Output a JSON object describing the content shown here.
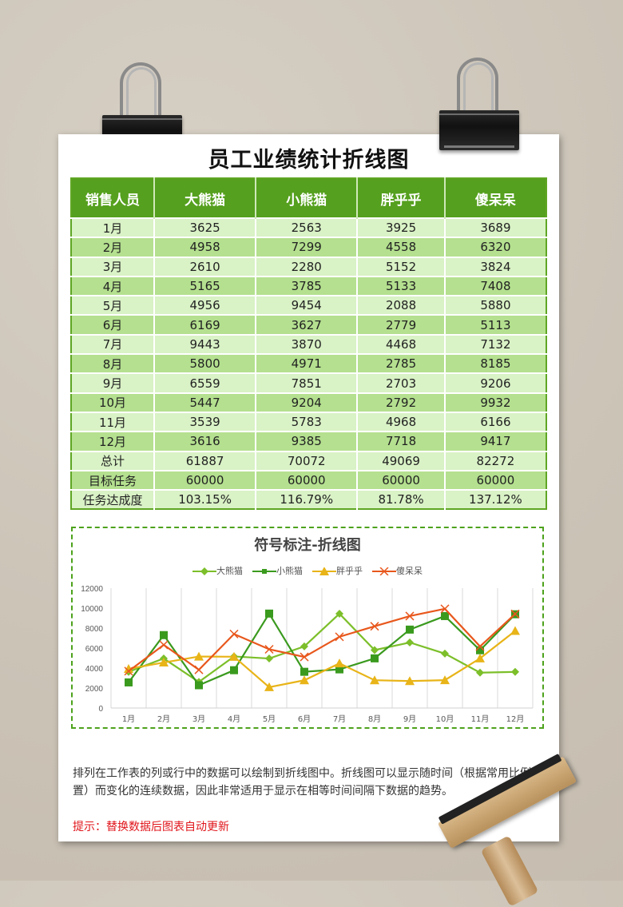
{
  "title": "员工业绩统计折线图",
  "table": {
    "headers": [
      "销售人员",
      "大熊猫",
      "小熊猫",
      "胖乎乎",
      "傻呆呆"
    ],
    "rows": [
      [
        "1月",
        "3625",
        "2563",
        "3925",
        "3689"
      ],
      [
        "2月",
        "4958",
        "7299",
        "4558",
        "6320"
      ],
      [
        "3月",
        "2610",
        "2280",
        "5152",
        "3824"
      ],
      [
        "4月",
        "5165",
        "3785",
        "5133",
        "7408"
      ],
      [
        "5月",
        "4956",
        "9454",
        "2088",
        "5880"
      ],
      [
        "6月",
        "6169",
        "3627",
        "2779",
        "5113"
      ],
      [
        "7月",
        "9443",
        "3870",
        "4468",
        "7132"
      ],
      [
        "8月",
        "5800",
        "4971",
        "2785",
        "8185"
      ],
      [
        "9月",
        "6559",
        "7851",
        "2703",
        "9206"
      ],
      [
        "10月",
        "5447",
        "9204",
        "2792",
        "9932"
      ],
      [
        "11月",
        "3539",
        "5783",
        "4968",
        "6166"
      ],
      [
        "12月",
        "3616",
        "9385",
        "7718",
        "9417"
      ],
      [
        "总计",
        "61887",
        "70072",
        "49069",
        "82272"
      ],
      [
        "目标任务",
        "60000",
        "60000",
        "60000",
        "60000"
      ],
      [
        "任务达成度",
        "103.15%",
        "116.79%",
        "81.78%",
        "137.12%"
      ]
    ]
  },
  "chart_data": {
    "type": "line",
    "title": "符号标注-折线图",
    "xlabel": "",
    "ylabel": "",
    "ylim": [
      0,
      12000
    ],
    "yticks": [
      0,
      2000,
      4000,
      6000,
      8000,
      10000,
      12000
    ],
    "grid": "vertical",
    "legend_position": "top",
    "categories": [
      "1月",
      "2月",
      "3月",
      "4月",
      "5月",
      "6月",
      "7月",
      "8月",
      "9月",
      "10月",
      "11月",
      "12月"
    ],
    "series": [
      {
        "name": "大熊猫",
        "color": "#7cbf2a",
        "marker": "diamond",
        "values": [
          3625,
          4958,
          2610,
          5165,
          4956,
          6169,
          9443,
          5800,
          6559,
          5447,
          3539,
          3616
        ]
      },
      {
        "name": "小熊猫",
        "color": "#3a9a1e",
        "marker": "square",
        "values": [
          2563,
          7299,
          2280,
          3785,
          9454,
          3627,
          3870,
          4971,
          7851,
          9204,
          5783,
          9385
        ]
      },
      {
        "name": "胖乎乎",
        "color": "#e8b418",
        "marker": "triangle",
        "values": [
          3925,
          4558,
          5152,
          5133,
          2088,
          2779,
          4468,
          2785,
          2703,
          2792,
          4968,
          7718
        ]
      },
      {
        "name": "傻呆呆",
        "color": "#e8571c",
        "marker": "x",
        "values": [
          3689,
          6320,
          3824,
          7408,
          5880,
          5113,
          7132,
          8185,
          9206,
          9932,
          6166,
          9417
        ]
      }
    ]
  },
  "description": "排列在工作表的列或行中的数据可以绘制到折线图中。折线图可以显示随时间（根据常用比例设置）而变化的连续数据，因此非常适用于显示在相等时间间隔下数据的趋势。",
  "hint": "提示：替换数据后图表自动更新"
}
